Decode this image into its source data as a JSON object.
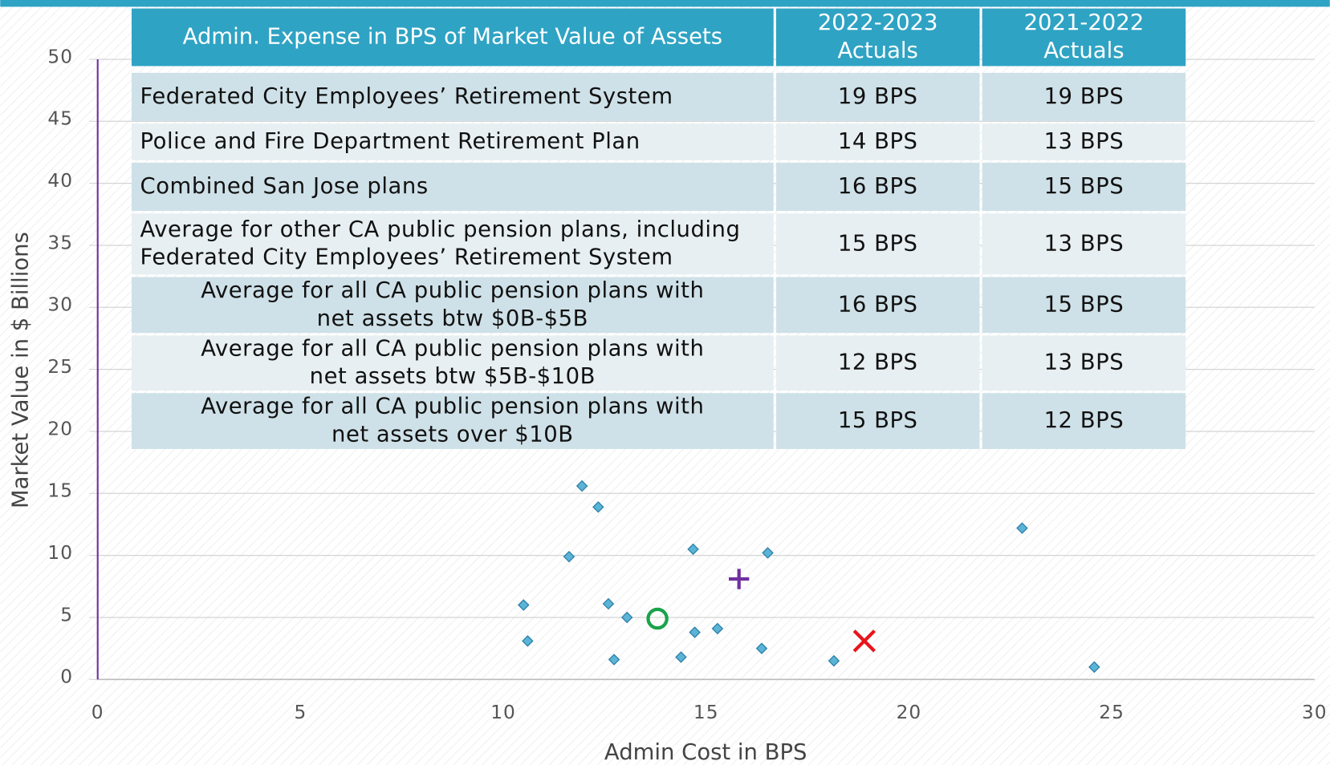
{
  "chart_data": {
    "type": "scatter",
    "xlabel": "Admin Cost in BPS",
    "ylabel": "Market Value in $ Billions",
    "xlim": [
      0,
      30
    ],
    "xticks": [
      0,
      5,
      10,
      15,
      20,
      25,
      30
    ],
    "ylim": [
      0,
      50
    ],
    "yticks": [
      0,
      5,
      10,
      15,
      20,
      25,
      30,
      35,
      40,
      45,
      50
    ],
    "grid": true,
    "series": [
      {
        "color": "#5bb4d6",
        "marker": "diamond",
        "x": [
          11.94,
          12.34,
          11.62,
          14.68,
          16.52,
          22.79,
          10.5,
          10.6,
          12.59,
          13.05,
          12.73,
          14.72,
          15.28,
          14.38,
          16.37,
          18.15,
          24.57
        ],
        "y": [
          15.6,
          13.9,
          9.9,
          10.5,
          10.2,
          12.2,
          6.0,
          3.1,
          6.1,
          5.0,
          1.6,
          3.8,
          4.1,
          1.8,
          2.5,
          1.5,
          1.0
        ]
      },
      {
        "color": "#1aa34a",
        "marker": "circle",
        "x": [
          13.8
        ],
        "y": [
          4.9
        ]
      },
      {
        "color": "#7030a0",
        "marker": "plus",
        "x": [
          15.81
        ],
        "y": [
          8.1
        ]
      },
      {
        "color": "#e8141b",
        "marker": "cross",
        "x": [
          18.9
        ],
        "y": [
          3.1
        ]
      }
    ]
  },
  "table": {
    "header": [
      [
        "Admin. Expense in BPS of Market Value of Assets"
      ],
      [
        "2022-2023",
        "Actuals"
      ],
      [
        "2021-2022",
        "Actuals"
      ]
    ],
    "rows": [
      [
        [
          "Federated City Employees’ Retirement System"
        ],
        [
          "19 BPS"
        ],
        [
          "19 BPS"
        ]
      ],
      [
        [
          "Police and Fire Department Retirement Plan"
        ],
        [
          "14 BPS"
        ],
        [
          "13 BPS"
        ]
      ],
      [
        [
          "Combined San Jose plans"
        ],
        [
          "16 BPS"
        ],
        [
          "15 BPS"
        ]
      ],
      [
        [
          "Average for other CA public pension plans, including",
          "Federated City Employees’ Retirement System"
        ],
        [
          "15 BPS"
        ],
        [
          "13 BPS"
        ]
      ],
      [
        [
          "Average for all CA public pension plans with",
          "net assets btw $0B-$5B"
        ],
        [
          "16 BPS"
        ],
        [
          "15 BPS"
        ]
      ],
      [
        [
          "Average for all CA public pension plans with",
          "net assets btw $5B-$10B"
        ],
        [
          "12 BPS"
        ],
        [
          "13 BPS"
        ]
      ],
      [
        [
          "Average for all CA public pension plans with",
          "net assets over $10B"
        ],
        [
          "15 BPS"
        ],
        [
          "12 BPS"
        ]
      ]
    ]
  }
}
